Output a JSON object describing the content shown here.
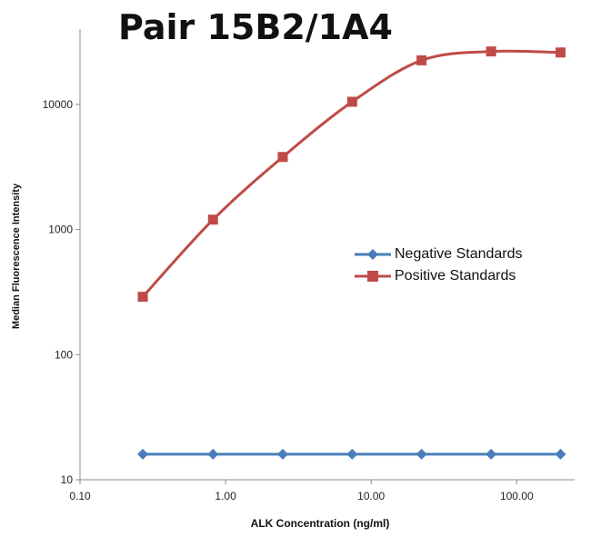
{
  "chart_data": {
    "type": "line",
    "title": "Pair 15B2/1A4",
    "xlabel": "ALK Concentration  (ng/ml)",
    "ylabel": "Median Fluorescence Intensity",
    "x_scale": "log",
    "y_scale": "log",
    "xlim": [
      0.1,
      250
    ],
    "ylim": [
      10,
      40000
    ],
    "x_ticks": [
      0.1,
      1,
      10,
      100
    ],
    "x_tick_labels": [
      "0.10",
      "1.00",
      "10.00",
      "100.00"
    ],
    "y_ticks": [
      10,
      100,
      1000,
      10000
    ],
    "y_tick_labels": [
      "10",
      "100",
      "1000",
      "10000"
    ],
    "grid": false,
    "legend_position": "right-middle",
    "series": [
      {
        "name": "Negative Standards",
        "color": "#4a7ebb",
        "marker": "diamond",
        "x": [
          0.27,
          0.82,
          2.47,
          7.41,
          22.2,
          66.7,
          200
        ],
        "y": [
          16,
          16,
          16,
          16,
          16,
          16,
          16
        ]
      },
      {
        "name": "Positive Standards",
        "color": "#be4b48",
        "marker": "square",
        "x": [
          0.27,
          0.82,
          2.47,
          7.41,
          22.2,
          66.7,
          200
        ],
        "y": [
          290,
          1200,
          3800,
          10500,
          22500,
          26500,
          26000
        ]
      }
    ]
  }
}
